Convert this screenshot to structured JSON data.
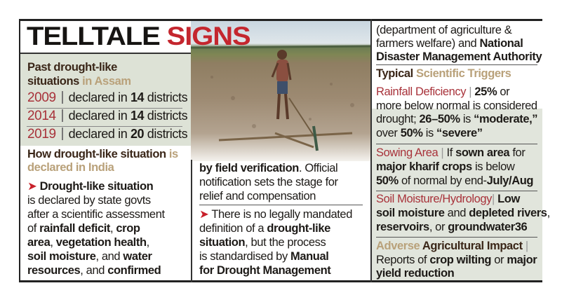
{
  "title": {
    "black": "TELLTALE",
    "red": "SIGNS"
  },
  "colors": {
    "accent_red": "#c4262e",
    "year_red": "#a8323a",
    "tan": "#b9a17a",
    "panel_green": "#dde2d6"
  },
  "photo": {
    "description_icon": "farmer-in-dry-field-photo"
  },
  "left": {
    "heading1": [
      [
        {
          "t": "Past drought-like",
          "s": "dark"
        }
      ],
      [
        {
          "t": "situations ",
          "s": "dark"
        },
        {
          "t": "in Assam",
          "s": "tan"
        }
      ]
    ],
    "years": [
      {
        "year": "2009",
        "text": "declared in ",
        "num": "14",
        "suffix": " districts"
      },
      {
        "year": "2014",
        "text": "declared in ",
        "num": "14",
        "suffix": " districts"
      },
      {
        "year": "2019",
        "text": "declared in ",
        "num": "20",
        "suffix": " districts"
      }
    ],
    "heading2": [
      [
        {
          "t": "How drought-like situation ",
          "s": "dark"
        },
        {
          "t": "is",
          "s": "tan"
        }
      ],
      [
        {
          "t": "declared in India",
          "s": "tan"
        }
      ]
    ],
    "body": [
      [
        {
          "t": "➤ ",
          "s": "arrow"
        },
        {
          "t": "Drought-like situation",
          "s": "b"
        }
      ],
      [
        {
          "t": "is declared by state govts",
          "s": ""
        }
      ],
      [
        {
          "t": "after a scientific assessment",
          "s": ""
        }
      ],
      [
        {
          "t": "of ",
          "s": ""
        },
        {
          "t": "rainfall deficit",
          "s": "b"
        },
        {
          "t": ", ",
          "s": ""
        },
        {
          "t": "crop",
          "s": "b"
        }
      ],
      [
        {
          "t": "area",
          "s": "b"
        },
        {
          "t": ", ",
          "s": ""
        },
        {
          "t": "vegetation health",
          "s": "b"
        },
        {
          "t": ",",
          "s": ""
        }
      ],
      [
        {
          "t": "soil moisture",
          "s": "b"
        },
        {
          "t": ", and ",
          "s": ""
        },
        {
          "t": "water",
          "s": "b"
        }
      ],
      [
        {
          "t": "resources",
          "s": "b"
        },
        {
          "t": ", and ",
          "s": ""
        },
        {
          "t": "confirmed",
          "s": "b"
        }
      ]
    ]
  },
  "middle": {
    "para1": [
      [
        {
          "t": "by field verification",
          "s": "b"
        },
        {
          "t": ". Official",
          "s": ""
        }
      ],
      [
        {
          "t": "notification sets the stage for",
          "s": ""
        }
      ],
      [
        {
          "t": "relief and compensation",
          "s": ""
        }
      ]
    ],
    "para2": [
      [
        {
          "t": "➤ ",
          "s": "arrow"
        },
        {
          "t": "There is no legally mandated",
          "s": ""
        }
      ],
      [
        {
          "t": "definition of a ",
          "s": ""
        },
        {
          "t": "drought-like",
          "s": "b"
        }
      ],
      [
        {
          "t": "situation",
          "s": "b"
        },
        {
          "t": ", but the process",
          "s": ""
        }
      ],
      [
        {
          "t": "is standardised by ",
          "s": ""
        },
        {
          "t": "Manual",
          "s": "b"
        }
      ],
      [
        {
          "t": "for Drought Management",
          "s": "b"
        }
      ]
    ]
  },
  "right": {
    "intro": [
      [
        {
          "t": "(department of agriculture &",
          "s": ""
        }
      ],
      [
        {
          "t": "farmers welfare) and ",
          "s": ""
        },
        {
          "t": "National",
          "s": "b"
        }
      ],
      [
        {
          "t": "Disaster Management Authority",
          "s": "b"
        }
      ]
    ],
    "triggers_heading": [
      [
        {
          "t": "Typical ",
          "s": "dark"
        },
        {
          "t": "Scientific Triggers",
          "s": "tan"
        }
      ]
    ],
    "rainfall": [
      [
        {
          "t": "Rainfall Deficiency",
          "s": "red"
        },
        {
          "t": " | ",
          "s": "bar"
        },
        {
          "t": "25%",
          "s": "b"
        },
        {
          "t": " or",
          "s": ""
        }
      ],
      [
        {
          "t": "more below normal is considered",
          "s": ""
        }
      ],
      [
        {
          "t": "drought; ",
          "s": ""
        },
        {
          "t": "26–50%",
          "s": "b"
        },
        {
          "t": " is ",
          "s": ""
        },
        {
          "t": "“moderate,”",
          "s": "b"
        }
      ],
      [
        {
          "t": "over ",
          "s": ""
        },
        {
          "t": "50%",
          "s": "b"
        },
        {
          "t": " is ",
          "s": ""
        },
        {
          "t": "“severe”",
          "s": "b"
        }
      ]
    ],
    "sowing": [
      [
        {
          "t": "Sowing Area",
          "s": "red"
        },
        {
          "t": " | ",
          "s": "bar"
        },
        {
          "t": "If ",
          "s": ""
        },
        {
          "t": "sown area",
          "s": "b"
        },
        {
          "t": " for",
          "s": ""
        }
      ],
      [
        {
          "t": "major kharif crops",
          "s": "b"
        },
        {
          "t": " is below",
          "s": ""
        }
      ],
      [
        {
          "t": "50%",
          "s": "b"
        },
        {
          "t": " of normal by end-",
          "s": ""
        },
        {
          "t": "July/Aug",
          "s": "b"
        }
      ]
    ],
    "soil": [
      [
        {
          "t": "Soil Moisture/Hydrology",
          "s": "red"
        },
        {
          "t": "| ",
          "s": "bar"
        },
        {
          "t": "Low",
          "s": "b"
        }
      ],
      [
        {
          "t": "soil moisture",
          "s": "b"
        },
        {
          "t": " and ",
          "s": ""
        },
        {
          "t": "depleted rivers",
          "s": "b"
        },
        {
          "t": ",",
          "s": ""
        }
      ],
      [
        {
          "t": "reservoirs",
          "s": "b"
        },
        {
          "t": ", or ",
          "s": ""
        },
        {
          "t": "groundwater36",
          "s": "b"
        }
      ]
    ],
    "impact": [
      [
        {
          "t": "Adverse ",
          "s": "tan"
        },
        {
          "t": "Agricultural Impact",
          "s": "dark"
        },
        {
          "t": " |",
          "s": "bar"
        }
      ],
      [
        {
          "t": "Reports of ",
          "s": ""
        },
        {
          "t": "crop wilting",
          "s": "b"
        },
        {
          "t": " or ",
          "s": ""
        },
        {
          "t": "major",
          "s": "b"
        }
      ],
      [
        {
          "t": "yield reduction",
          "s": "b"
        }
      ]
    ]
  }
}
